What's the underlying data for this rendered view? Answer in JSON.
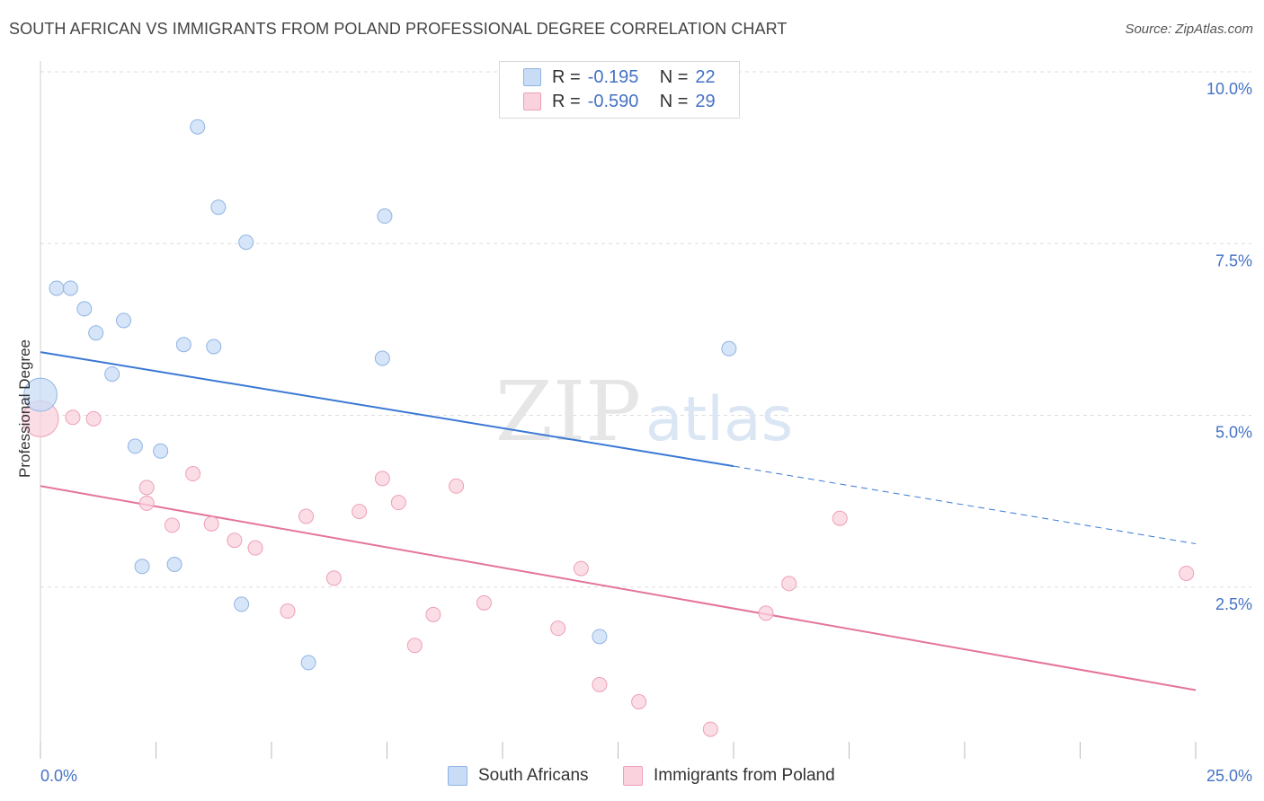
{
  "title": "SOUTH AFRICAN VS IMMIGRANTS FROM POLAND PROFESSIONAL DEGREE CORRELATION CHART",
  "source": "Source: ZipAtlas.com",
  "watermark": {
    "zip": "ZIP",
    "atlas": "atlas"
  },
  "colors": {
    "blue_fill": "#c9dcf5",
    "blue_stroke": "#8fb4e3",
    "blue_line": "#3a78d4",
    "pink_fill": "#f9d2dd",
    "pink_stroke": "#ee9fb6",
    "pink_line": "#e4749c",
    "tick_label": "#4472c4",
    "grid": "#dddddd"
  },
  "legend": {
    "rows": [
      {
        "r_label": "R =",
        "r_value": "-0.195",
        "n_label": "N =",
        "n_value": "22"
      },
      {
        "r_label": "R =",
        "r_value": "-0.590",
        "n_label": "N =",
        "n_value": "29"
      }
    ]
  },
  "bottom_legend": {
    "blue": "South Africans",
    "pink": "Immigrants from Poland"
  },
  "chart_data": {
    "type": "scatter",
    "title": "SOUTH AFRICAN VS IMMIGRANTS FROM POLAND PROFESSIONAL DEGREE CORRELATION CHART",
    "xlabel": "",
    "ylabel": "Professional Degree",
    "xlim": [
      0,
      25
    ],
    "ylim": [
      0,
      10
    ],
    "x_tick_labels": [
      "0.0%",
      "25.0%"
    ],
    "y_ticks": [
      2.5,
      5.0,
      7.5,
      10.0
    ],
    "y_tick_labels": [
      "2.5%",
      "5.0%",
      "7.5%",
      "10.0%"
    ],
    "grid": true,
    "legend_position": "top-center",
    "series": [
      {
        "name": "South Africans",
        "color": "#8fb4e3",
        "points": [
          [
            0.0,
            5.3
          ],
          [
            0.35,
            6.85
          ],
          [
            0.65,
            6.85
          ],
          [
            0.95,
            6.55
          ],
          [
            1.2,
            6.2
          ],
          [
            1.8,
            6.38
          ],
          [
            1.55,
            5.6
          ],
          [
            3.1,
            6.03
          ],
          [
            3.75,
            6.0
          ],
          [
            3.4,
            9.2
          ],
          [
            3.85,
            8.03
          ],
          [
            4.45,
            7.52
          ],
          [
            7.45,
            7.9
          ],
          [
            7.4,
            5.83
          ],
          [
            14.9,
            5.97
          ],
          [
            2.05,
            4.55
          ],
          [
            2.6,
            4.48
          ],
          [
            2.2,
            2.8
          ],
          [
            2.9,
            2.83
          ],
          [
            4.35,
            2.25
          ],
          [
            5.8,
            1.4
          ],
          [
            12.1,
            1.78
          ]
        ],
        "sizes": [
          2.3,
          1,
          1,
          1,
          1,
          1,
          1,
          1,
          1,
          1,
          1,
          1,
          1,
          1,
          1,
          1,
          1,
          1,
          1,
          1,
          1,
          1
        ],
        "trend": {
          "x0": 0,
          "y0": 5.92,
          "x1": 15.0,
          "y1": 4.26,
          "dash_x1": 25,
          "dash_y1": 3.13
        }
      },
      {
        "name": "Immigrants from Poland",
        "color": "#ee9fb6",
        "points": [
          [
            0.0,
            4.95
          ],
          [
            0.7,
            4.97
          ],
          [
            1.15,
            4.95
          ],
          [
            2.3,
            3.72
          ],
          [
            2.3,
            3.95
          ],
          [
            2.85,
            3.4
          ],
          [
            3.3,
            4.15
          ],
          [
            3.7,
            3.42
          ],
          [
            4.2,
            3.18
          ],
          [
            4.65,
            3.07
          ],
          [
            5.35,
            2.15
          ],
          [
            5.75,
            3.53
          ],
          [
            6.35,
            2.63
          ],
          [
            6.9,
            3.6
          ],
          [
            7.4,
            4.08
          ],
          [
            7.75,
            3.73
          ],
          [
            8.1,
            1.65
          ],
          [
            8.5,
            2.1
          ],
          [
            9.0,
            3.97
          ],
          [
            9.6,
            2.27
          ],
          [
            11.2,
            1.9
          ],
          [
            11.7,
            2.77
          ],
          [
            12.1,
            1.08
          ],
          [
            12.95,
            0.83
          ],
          [
            14.5,
            0.43
          ],
          [
            15.7,
            2.12
          ],
          [
            16.2,
            2.55
          ],
          [
            17.3,
            3.5
          ],
          [
            24.8,
            2.7
          ]
        ],
        "sizes": [
          2.5,
          1,
          1,
          1,
          1,
          1,
          1,
          1,
          1,
          1,
          1,
          1,
          1,
          1,
          1,
          1,
          1,
          1,
          1,
          1,
          1,
          1,
          1,
          1,
          1,
          1,
          1,
          1,
          1
        ],
        "trend": {
          "x0": 0,
          "y0": 3.97,
          "x1": 25,
          "y1": 1.0
        }
      }
    ]
  }
}
